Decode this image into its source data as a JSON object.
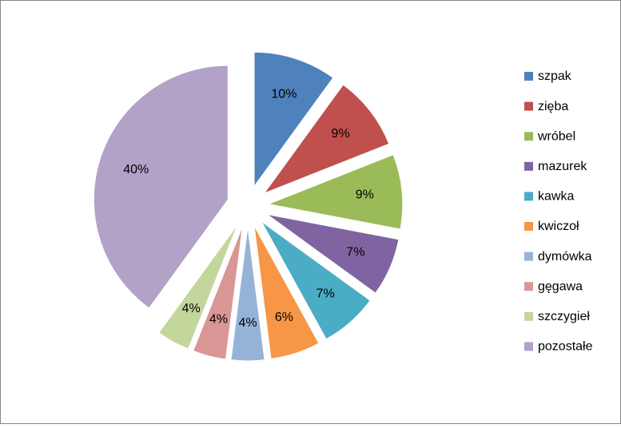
{
  "chart_data": {
    "type": "pie",
    "categories": [
      "szpak",
      "zięba",
      "wróbel",
      "mazurek",
      "kawka",
      "kwiczoł",
      "dymówka",
      "gęgawa",
      "szczygieł",
      "pozostałe"
    ],
    "values": [
      10,
      9,
      9,
      7,
      7,
      6,
      4,
      4,
      4,
      40
    ],
    "value_labels": [
      "10%",
      "9%",
      "9%",
      "7%",
      "7%",
      "6%",
      "4%",
      "4%",
      "4%",
      "40%"
    ],
    "colors": [
      "#4f81bd",
      "#c0504d",
      "#9bbb59",
      "#8064a2",
      "#4bacc6",
      "#f79646",
      "#95b3d7",
      "#d99694",
      "#c3d69b",
      "#b2a2c7"
    ],
    "legend": "right"
  }
}
